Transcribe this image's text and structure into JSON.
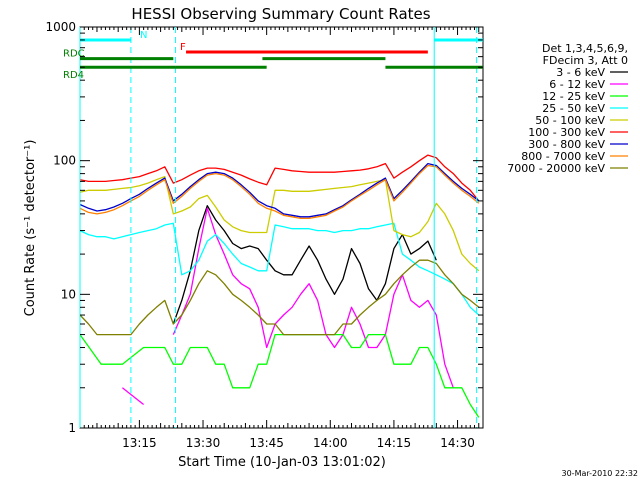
{
  "chart_data": {
    "type": "line",
    "title": "HESSI Observing Summary Count Rates",
    "xlabel": "Start Time (10-Jan-03 13:01:02)",
    "ylabel": "Count Rate (s⁻¹ detector⁻¹)",
    "y_scale": "log",
    "ylim": [
      1,
      1000
    ],
    "xlim_minutes": [
      0,
      95
    ],
    "x_ticks": [
      {
        "t": 14,
        "label": "13:15"
      },
      {
        "t": 29,
        "label": "13:30"
      },
      {
        "t": 44,
        "label": "13:45"
      },
      {
        "t": 59,
        "label": "14:00"
      },
      {
        "t": 74,
        "label": "14:15"
      },
      {
        "t": 89,
        "label": "14:30"
      }
    ],
    "y_ticks": [
      {
        "v": 1,
        "label": "1"
      },
      {
        "v": 10,
        "label": "10"
      },
      {
        "v": 100,
        "label": "100"
      },
      {
        "v": 1000,
        "label": "1000"
      }
    ],
    "legend_placement": "right",
    "legend_header": [
      "Det 1,3,4,5,6,9,",
      "FDecim 3, Att 0"
    ],
    "series": [
      {
        "name": "3 - 6 keV",
        "color": "#000000",
        "x": [
          0,
          5,
          10,
          15,
          20,
          22,
          24,
          26,
          28,
          30,
          32,
          34,
          36,
          38,
          40,
          42,
          44,
          46,
          48,
          50,
          52,
          54,
          56,
          58,
          60,
          62,
          64,
          66,
          68,
          70,
          72,
          74,
          76,
          78,
          80,
          82,
          84,
          86,
          88,
          90,
          92,
          94
        ],
        "y": [
          null,
          null,
          null,
          null,
          null,
          6,
          9,
          15,
          30,
          46,
          36,
          30,
          24,
          22,
          23,
          22,
          18,
          15,
          14,
          14,
          18,
          23,
          18,
          13,
          10,
          13,
          22,
          17,
          11,
          9,
          12,
          22,
          28,
          20,
          22,
          25,
          18,
          null,
          null,
          null,
          null,
          null
        ]
      },
      {
        "name": "6 - 12 keV",
        "color": "#ff00ff",
        "x": [
          0,
          5,
          10,
          15,
          20,
          22,
          24,
          26,
          28,
          30,
          32,
          34,
          36,
          38,
          40,
          42,
          44,
          46,
          48,
          50,
          52,
          54,
          56,
          58,
          60,
          62,
          64,
          66,
          68,
          70,
          72,
          74,
          76,
          78,
          80,
          82,
          84,
          86,
          88,
          90,
          92,
          94
        ],
        "y": [
          null,
          null,
          2,
          1.5,
          null,
          5,
          7,
          10,
          22,
          44,
          28,
          20,
          14,
          12,
          11,
          8,
          4,
          6,
          7,
          8,
          10,
          12,
          9,
          5,
          4,
          5,
          8,
          6,
          4,
          4,
          5,
          10,
          14,
          9,
          8,
          9,
          7,
          3,
          2,
          null,
          null,
          null
        ]
      },
      {
        "name": "12 - 25 keV",
        "color": "#00ff00",
        "x": [
          0,
          5,
          10,
          15,
          20,
          22,
          24,
          26,
          28,
          30,
          32,
          34,
          36,
          38,
          40,
          42,
          44,
          46,
          48,
          50,
          52,
          54,
          56,
          58,
          60,
          62,
          64,
          66,
          68,
          70,
          72,
          74,
          76,
          78,
          80,
          82,
          84,
          86,
          88,
          90,
          92,
          94
        ],
        "y": [
          5,
          3,
          3,
          4,
          4,
          3,
          3,
          4,
          4,
          4,
          3,
          3,
          2,
          2,
          2,
          3,
          3,
          5,
          5,
          5,
          5,
          5,
          5,
          5,
          5,
          5,
          4,
          4,
          5,
          5,
          5,
          3,
          3,
          3,
          4,
          4,
          3,
          2,
          2,
          2,
          1.5,
          1.2
        ]
      },
      {
        "name": "25 - 50 keV",
        "color": "#00ffff",
        "x": [
          0,
          2,
          4,
          6,
          8,
          10,
          12,
          14,
          16,
          18,
          20,
          22,
          24,
          26,
          28,
          30,
          32,
          34,
          36,
          38,
          40,
          42,
          44,
          46,
          48,
          50,
          52,
          54,
          56,
          58,
          60,
          62,
          64,
          66,
          68,
          70,
          72,
          74,
          76,
          78,
          80,
          82,
          84,
          86,
          88,
          90,
          92,
          94
        ],
        "y": [
          30,
          28,
          27,
          27,
          26,
          27,
          28,
          29,
          30,
          31,
          33,
          34,
          14,
          15,
          18,
          25,
          28,
          24,
          20,
          17,
          16,
          15,
          15,
          33,
          32,
          31,
          31,
          31,
          30,
          30,
          29,
          30,
          30,
          31,
          31,
          32,
          33,
          34,
          20,
          18,
          16,
          15,
          14,
          13,
          12,
          10,
          8,
          7
        ]
      },
      {
        "name": "50 - 100 keV",
        "color": "#cccc00",
        "x": [
          0,
          2,
          4,
          6,
          8,
          10,
          12,
          14,
          16,
          18,
          20,
          22,
          24,
          26,
          28,
          30,
          32,
          34,
          36,
          38,
          40,
          42,
          44,
          46,
          48,
          50,
          52,
          54,
          56,
          58,
          60,
          62,
          64,
          66,
          68,
          70,
          72,
          74,
          76,
          78,
          80,
          82,
          84,
          86,
          88,
          90,
          92,
          94
        ],
        "y": [
          58,
          60,
          60,
          60,
          61,
          62,
          63,
          65,
          68,
          72,
          76,
          40,
          42,
          45,
          52,
          55,
          45,
          36,
          32,
          30,
          29,
          29,
          29,
          60,
          60,
          59,
          59,
          59,
          60,
          61,
          62,
          63,
          64,
          66,
          68,
          70,
          72,
          30,
          28,
          27,
          29,
          35,
          48,
          40,
          30,
          20,
          17,
          15
        ]
      },
      {
        "name": "100 - 300 keV",
        "color": "#ff0000",
        "x": [
          0,
          2,
          4,
          6,
          8,
          10,
          12,
          14,
          16,
          18,
          20,
          22,
          24,
          26,
          28,
          30,
          32,
          34,
          36,
          38,
          40,
          42,
          44,
          46,
          48,
          50,
          52,
          54,
          56,
          58,
          60,
          62,
          64,
          66,
          68,
          70,
          72,
          74,
          76,
          78,
          80,
          82,
          84,
          86,
          88,
          90,
          92,
          94
        ],
        "y": [
          72,
          70,
          70,
          70,
          71,
          72,
          74,
          76,
          80,
          84,
          90,
          68,
          72,
          78,
          84,
          88,
          88,
          86,
          82,
          78,
          73,
          69,
          66,
          88,
          86,
          84,
          83,
          82,
          82,
          82,
          82,
          83,
          84,
          85,
          87,
          90,
          95,
          74,
          82,
          90,
          100,
          110,
          105,
          90,
          80,
          68,
          60,
          50
        ]
      },
      {
        "name": "300 - 800 keV",
        "color": "#0000cc",
        "x": [
          0,
          2,
          4,
          6,
          8,
          10,
          12,
          14,
          16,
          18,
          20,
          22,
          24,
          26,
          28,
          30,
          32,
          34,
          36,
          38,
          40,
          42,
          44,
          46,
          48,
          50,
          52,
          54,
          56,
          58,
          60,
          62,
          64,
          66,
          68,
          70,
          72,
          74,
          76,
          78,
          80,
          82,
          84,
          86,
          88,
          90,
          92,
          94
        ],
        "y": [
          47,
          44,
          42,
          43,
          45,
          48,
          52,
          56,
          62,
          68,
          74,
          50,
          56,
          64,
          72,
          80,
          82,
          80,
          74,
          66,
          58,
          50,
          46,
          44,
          40,
          39,
          38,
          38,
          39,
          40,
          43,
          46,
          51,
          56,
          62,
          68,
          74,
          52,
          60,
          70,
          82,
          95,
          92,
          80,
          70,
          62,
          56,
          50
        ]
      },
      {
        "name": "800 - 7000 keV",
        "color": "#ff8000",
        "x": [
          0,
          2,
          4,
          6,
          8,
          10,
          12,
          14,
          16,
          18,
          20,
          22,
          24,
          26,
          28,
          30,
          32,
          34,
          36,
          38,
          40,
          42,
          44,
          46,
          48,
          50,
          52,
          54,
          56,
          58,
          60,
          62,
          64,
          66,
          68,
          70,
          72,
          74,
          76,
          78,
          80,
          82,
          84,
          86,
          88,
          90,
          92,
          94
        ],
        "y": [
          44,
          41,
          40,
          41,
          43,
          46,
          50,
          54,
          60,
          66,
          72,
          48,
          54,
          62,
          70,
          78,
          80,
          78,
          72,
          64,
          56,
          48,
          44,
          42,
          39,
          38,
          37,
          37,
          38,
          39,
          42,
          45,
          50,
          55,
          60,
          66,
          72,
          50,
          58,
          68,
          80,
          92,
          90,
          78,
          68,
          60,
          54,
          48
        ]
      },
      {
        "name": "7000 - 20000 keV",
        "color": "#7f7f00",
        "x": [
          0,
          2,
          4,
          6,
          8,
          10,
          12,
          14,
          16,
          18,
          20,
          22,
          24,
          26,
          28,
          30,
          32,
          34,
          36,
          38,
          40,
          42,
          44,
          46,
          48,
          50,
          52,
          54,
          56,
          58,
          60,
          62,
          64,
          66,
          68,
          70,
          72,
          74,
          76,
          78,
          80,
          82,
          84,
          86,
          88,
          90,
          92,
          94
        ],
        "y": [
          7,
          6,
          5,
          5,
          5,
          5,
          5,
          6,
          7,
          8,
          9,
          6,
          7,
          9,
          12,
          15,
          14,
          12,
          10,
          9,
          8,
          7,
          6,
          6,
          5,
          5,
          5,
          5,
          5,
          5,
          5,
          6,
          6,
          7,
          8,
          9,
          10,
          12,
          14,
          16,
          18,
          18,
          17,
          14,
          12,
          10,
          9,
          8
        ]
      }
    ],
    "vertical_lines": [
      {
        "t": 0,
        "style": "solid",
        "color": "#00ffff"
      },
      {
        "t": 12,
        "style": "dashed",
        "color": "#00ffff"
      },
      {
        "t": 22.5,
        "style": "dashed",
        "color": "#00ffff"
      },
      {
        "t": 83.5,
        "style": "solid",
        "color": "#00ffff"
      },
      {
        "t": 93.5,
        "style": "dashed",
        "color": "#00ffff"
      }
    ],
    "top_bars": [
      {
        "label": "N",
        "color": "#00ffff",
        "value": 800,
        "segments": [
          [
            0,
            12
          ]
        ]
      },
      {
        "label": "",
        "color": "#00ffff",
        "value": 800,
        "segments": [
          [
            83.5,
            95
          ]
        ]
      },
      {
        "label": "F",
        "color": "#ff0000",
        "value": 650,
        "segments": [
          [
            25,
            82
          ]
        ]
      },
      {
        "label": "RDC",
        "color": "#008000",
        "value": 580,
        "segments": [
          [
            0,
            22
          ],
          [
            43,
            72
          ]
        ]
      },
      {
        "label": "RD4",
        "color": "#008000",
        "value": 500,
        "segments": [
          [
            0,
            22.5
          ],
          [
            22.5,
            44
          ],
          [
            72,
            95
          ]
        ]
      }
    ],
    "timestamp_footer": "30-Mar-2010 22:32"
  }
}
